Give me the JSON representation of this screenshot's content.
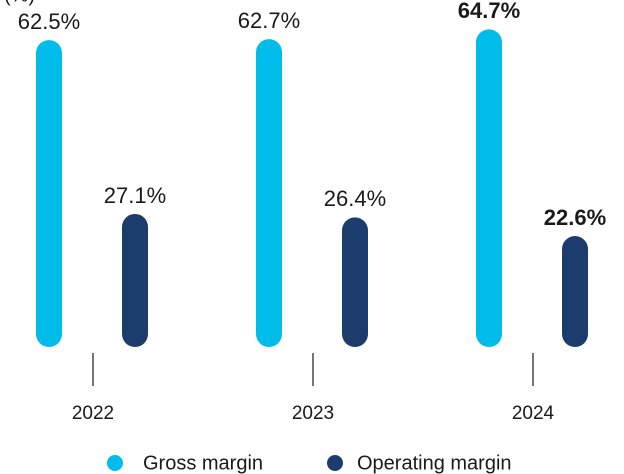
{
  "chart_data": {
    "type": "bar",
    "y_label": "(%)",
    "categories": [
      "2022",
      "2023",
      "2024"
    ],
    "series": [
      {
        "name": "Gross margin",
        "color": "#00bceb",
        "values": [
          62.5,
          62.7,
          64.7
        ],
        "value_labels": [
          "62.5%",
          "62.7%",
          "64.7%"
        ]
      },
      {
        "name": "Operating margin",
        "color": "#1d3c6e",
        "values": [
          27.1,
          26.4,
          22.6
        ],
        "value_labels": [
          "27.1%",
          "26.4%",
          "22.6%"
        ]
      }
    ],
    "legend": "bottom"
  }
}
